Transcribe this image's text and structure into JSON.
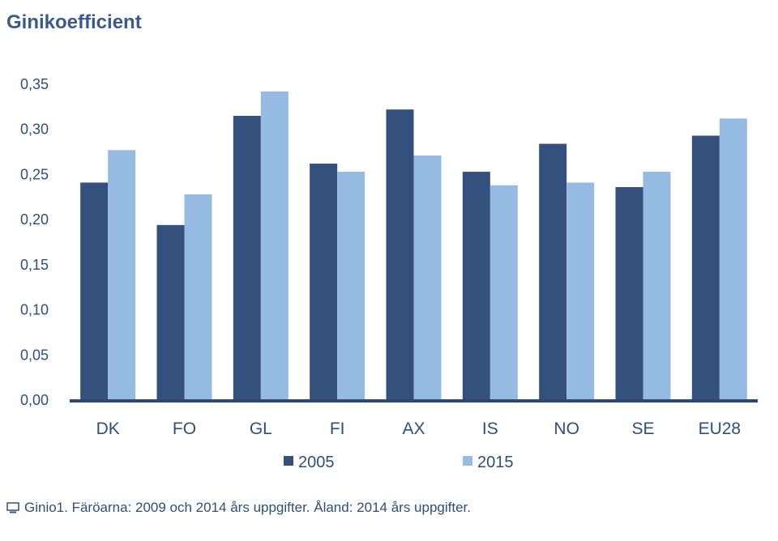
{
  "title": "Ginikoefficient",
  "footnote": "Ginio1. Färöarna: 2009 och 2014 års uppgifter. Åland: 2014 års uppgifter.",
  "colors": {
    "series_2005": "#34507c",
    "series_2015": "#95bbe2",
    "axis": "#2e4775",
    "text": "#2d4f7e"
  },
  "icons": {
    "footnote_icon": "computer-icon"
  },
  "chart_data": {
    "type": "bar",
    "categories": [
      "DK",
      "FO",
      "GL",
      "FI",
      "AX",
      "IS",
      "NO",
      "SE",
      "EU28"
    ],
    "series": [
      {
        "name": "2005",
        "values": [
          0.241,
          0.194,
          0.315,
          0.262,
          0.322,
          0.253,
          0.284,
          0.236,
          0.293
        ]
      },
      {
        "name": "2015",
        "values": [
          0.277,
          0.228,
          0.342,
          0.253,
          0.271,
          0.238,
          0.241,
          0.253,
          0.312
        ]
      }
    ],
    "ylim": [
      0,
      0.35
    ],
    "yticks": [
      "0,00",
      "0,05",
      "0,10",
      "0,15",
      "0,20",
      "0,25",
      "0,30",
      "0,35"
    ],
    "xlabel": "",
    "ylabel": "",
    "grid": false,
    "legend_position": "bottom"
  }
}
